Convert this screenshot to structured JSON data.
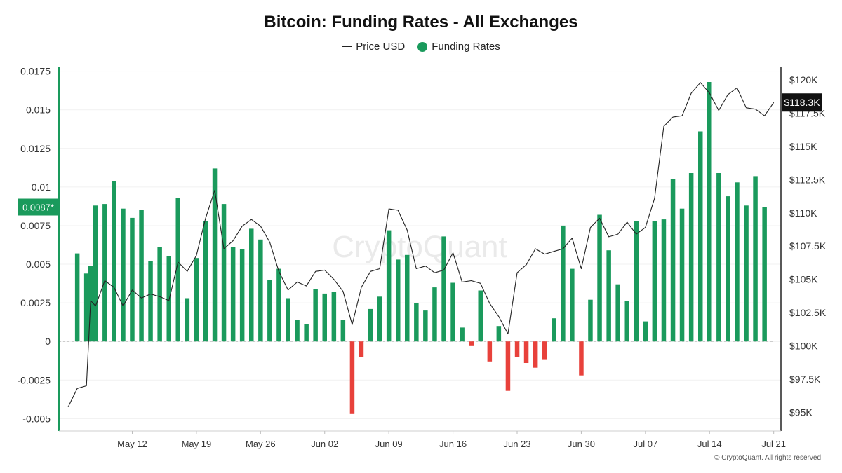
{
  "chart_data": {
    "type": "bar",
    "title": "Bitcoin: Funding Rates - All Exchanges",
    "legend": {
      "placement": "top-center",
      "items": [
        {
          "label": "Price USD",
          "marker": "line",
          "color": "#222222"
        },
        {
          "label": "Funding Rates",
          "marker": "dot",
          "color": "#1a9a5c"
        }
      ]
    },
    "colors": {
      "positive": "#1a9a5c",
      "negative": "#e8413b",
      "price_line": "#222222",
      "left_axis": "#1a9a5c",
      "right_axis": "#222222",
      "left_badge_bg": "#1a9a5c",
      "right_badge_bg": "#111111"
    },
    "watermark": "CryptoQuant",
    "copyright": "© CryptoQuant. All rights reserved",
    "left_axis": {
      "min": -0.0058,
      "max": 0.0178,
      "ticks": [
        {
          "value": 0.0175,
          "label": "0.0175"
        },
        {
          "value": 0.015,
          "label": "0.015"
        },
        {
          "value": 0.0125,
          "label": "0.0125"
        },
        {
          "value": 0.01,
          "label": "0.01"
        },
        {
          "value": 0.0075,
          "label": "0.0075"
        },
        {
          "value": 0.005,
          "label": "0.005"
        },
        {
          "value": 0.0025,
          "label": "0.0025"
        },
        {
          "value": 0,
          "label": "0"
        },
        {
          "value": -0.0025,
          "label": "-0.0025"
        },
        {
          "value": -0.005,
          "label": "-0.005"
        }
      ],
      "badge": {
        "value": 0.0087,
        "label": "0.0087*"
      }
    },
    "right_axis": {
      "min": 93600,
      "max": 121000,
      "ticks": [
        {
          "value": 120000,
          "label": "$120K"
        },
        {
          "value": 117500,
          "label": "$117.5K"
        },
        {
          "value": 115000,
          "label": "$115K"
        },
        {
          "value": 112500,
          "label": "$112.5K"
        },
        {
          "value": 110000,
          "label": "$110K"
        },
        {
          "value": 107500,
          "label": "$107.5K"
        },
        {
          "value": 105000,
          "label": "$105K"
        },
        {
          "value": 102500,
          "label": "$102.5K"
        },
        {
          "value": 100000,
          "label": "$100K"
        },
        {
          "value": 97500,
          "label": "$97.5K"
        },
        {
          "value": 95000,
          "label": "$95K"
        }
      ],
      "badge": {
        "value": 118300,
        "label": "$118.3K"
      }
    },
    "x_axis": {
      "labels": [
        {
          "date": "2025-05-12",
          "label": "May 12"
        },
        {
          "date": "2025-05-19",
          "label": "May 19"
        },
        {
          "date": "2025-05-26",
          "label": "May 26"
        },
        {
          "date": "2025-06-02",
          "label": "Jun 02"
        },
        {
          "date": "2025-06-09",
          "label": "Jun 09"
        },
        {
          "date": "2025-06-16",
          "label": "Jun 16"
        },
        {
          "date": "2025-06-23",
          "label": "Jun 23"
        },
        {
          "date": "2025-06-30",
          "label": "Jun 30"
        },
        {
          "date": "2025-07-07",
          "label": "Jul 07"
        },
        {
          "date": "2025-07-14",
          "label": "Jul 14"
        },
        {
          "date": "2025-07-21",
          "label": "Jul 21"
        }
      ]
    },
    "funding_rates": [
      {
        "x": "2025-05-06",
        "y": 0.0057
      },
      {
        "x": "2025-05-07",
        "y": 0.0044
      },
      {
        "x": "2025-05-07",
        "y": 0.0049
      },
      {
        "x": "2025-05-08",
        "y": 0.0088
      },
      {
        "x": "2025-05-09",
        "y": 0.0089
      },
      {
        "x": "2025-05-10",
        "y": 0.0104
      },
      {
        "x": "2025-05-11",
        "y": 0.0086
      },
      {
        "x": "2025-05-12",
        "y": 0.008
      },
      {
        "x": "2025-05-13",
        "y": 0.0085
      },
      {
        "x": "2025-05-14",
        "y": 0.0052
      },
      {
        "x": "2025-05-15",
        "y": 0.0061
      },
      {
        "x": "2025-05-16",
        "y": 0.0055
      },
      {
        "x": "2025-05-17",
        "y": 0.0093
      },
      {
        "x": "2025-05-18",
        "y": 0.0028
      },
      {
        "x": "2025-05-19",
        "y": 0.0054
      },
      {
        "x": "2025-05-20",
        "y": 0.0078
      },
      {
        "x": "2025-05-21",
        "y": 0.0112
      },
      {
        "x": "2025-05-22",
        "y": 0.0089
      },
      {
        "x": "2025-05-23",
        "y": 0.0061
      },
      {
        "x": "2025-05-24",
        "y": 0.006
      },
      {
        "x": "2025-05-25",
        "y": 0.0073
      },
      {
        "x": "2025-05-26",
        "y": 0.0066
      },
      {
        "x": "2025-05-27",
        "y": 0.004
      },
      {
        "x": "2025-05-28",
        "y": 0.0047
      },
      {
        "x": "2025-05-29",
        "y": 0.0028
      },
      {
        "x": "2025-05-30",
        "y": 0.0014
      },
      {
        "x": "2025-05-31",
        "y": 0.0011
      },
      {
        "x": "2025-06-01",
        "y": 0.0034
      },
      {
        "x": "2025-06-02",
        "y": 0.0031
      },
      {
        "x": "2025-06-03",
        "y": 0.0032
      },
      {
        "x": "2025-06-04",
        "y": 0.0014
      },
      {
        "x": "2025-06-05",
        "y": -0.0047
      },
      {
        "x": "2025-06-06",
        "y": -0.001
      },
      {
        "x": "2025-06-07",
        "y": 0.0021
      },
      {
        "x": "2025-06-08",
        "y": 0.0029
      },
      {
        "x": "2025-06-09",
        "y": 0.0072
      },
      {
        "x": "2025-06-10",
        "y": 0.0053
      },
      {
        "x": "2025-06-11",
        "y": 0.0056
      },
      {
        "x": "2025-06-12",
        "y": 0.0025
      },
      {
        "x": "2025-06-13",
        "y": 0.002
      },
      {
        "x": "2025-06-14",
        "y": 0.0035
      },
      {
        "x": "2025-06-15",
        "y": 0.0068
      },
      {
        "x": "2025-06-16",
        "y": 0.0038
      },
      {
        "x": "2025-06-17",
        "y": 0.0009
      },
      {
        "x": "2025-06-18",
        "y": -0.0003
      },
      {
        "x": "2025-06-19",
        "y": 0.0033
      },
      {
        "x": "2025-06-20",
        "y": -0.0013
      },
      {
        "x": "2025-06-21",
        "y": 0.001
      },
      {
        "x": "2025-06-22",
        "y": -0.0032
      },
      {
        "x": "2025-06-23",
        "y": -0.001
      },
      {
        "x": "2025-06-24",
        "y": -0.0014
      },
      {
        "x": "2025-06-25",
        "y": -0.0017
      },
      {
        "x": "2025-06-26",
        "y": -0.0012
      },
      {
        "x": "2025-06-27",
        "y": 0.0015
      },
      {
        "x": "2025-06-28",
        "y": 0.0075
      },
      {
        "x": "2025-06-29",
        "y": 0.0047
      },
      {
        "x": "2025-06-30",
        "y": -0.0022
      },
      {
        "x": "2025-07-01",
        "y": 0.0027
      },
      {
        "x": "2025-07-02",
        "y": 0.0082
      },
      {
        "x": "2025-07-03",
        "y": 0.0059
      },
      {
        "x": "2025-07-04",
        "y": 0.0037
      },
      {
        "x": "2025-07-05",
        "y": 0.0026
      },
      {
        "x": "2025-07-06",
        "y": 0.0078
      },
      {
        "x": "2025-07-07",
        "y": 0.0013
      },
      {
        "x": "2025-07-08",
        "y": 0.0078
      },
      {
        "x": "2025-07-09",
        "y": 0.0079
      },
      {
        "x": "2025-07-10",
        "y": 0.0105
      },
      {
        "x": "2025-07-11",
        "y": 0.0086
      },
      {
        "x": "2025-07-12",
        "y": 0.0109
      },
      {
        "x": "2025-07-13",
        "y": 0.0136
      },
      {
        "x": "2025-07-14",
        "y": 0.0168
      },
      {
        "x": "2025-07-15",
        "y": 0.0109
      },
      {
        "x": "2025-07-16",
        "y": 0.0094
      },
      {
        "x": "2025-07-17",
        "y": 0.0103
      },
      {
        "x": "2025-07-18",
        "y": 0.0088
      },
      {
        "x": "2025-07-19",
        "y": 0.0107
      },
      {
        "x": "2025-07-20",
        "y": 0.0087
      }
    ],
    "price_usd": [
      {
        "x": "2025-05-05",
        "y": 95400
      },
      {
        "x": "2025-05-06",
        "y": 96800
      },
      {
        "x": "2025-05-07",
        "y": 97000
      },
      {
        "x": "2025-05-07",
        "y": 103400
      },
      {
        "x": "2025-05-08",
        "y": 103000
      },
      {
        "x": "2025-05-09",
        "y": 104900
      },
      {
        "x": "2025-05-10",
        "y": 104400
      },
      {
        "x": "2025-05-11",
        "y": 103000
      },
      {
        "x": "2025-05-12",
        "y": 104200
      },
      {
        "x": "2025-05-13",
        "y": 103600
      },
      {
        "x": "2025-05-14",
        "y": 103900
      },
      {
        "x": "2025-05-15",
        "y": 103700
      },
      {
        "x": "2025-05-16",
        "y": 103400
      },
      {
        "x": "2025-05-17",
        "y": 106300
      },
      {
        "x": "2025-05-18",
        "y": 105600
      },
      {
        "x": "2025-05-19",
        "y": 106800
      },
      {
        "x": "2025-05-20",
        "y": 109600
      },
      {
        "x": "2025-05-21",
        "y": 111700
      },
      {
        "x": "2025-05-22",
        "y": 107300
      },
      {
        "x": "2025-05-23",
        "y": 107900
      },
      {
        "x": "2025-05-24",
        "y": 109000
      },
      {
        "x": "2025-05-25",
        "y": 109500
      },
      {
        "x": "2025-05-26",
        "y": 109000
      },
      {
        "x": "2025-05-27",
        "y": 107800
      },
      {
        "x": "2025-05-28",
        "y": 105600
      },
      {
        "x": "2025-05-29",
        "y": 104200
      },
      {
        "x": "2025-05-30",
        "y": 104800
      },
      {
        "x": "2025-05-31",
        "y": 104500
      },
      {
        "x": "2025-06-01",
        "y": 105600
      },
      {
        "x": "2025-06-02",
        "y": 105700
      },
      {
        "x": "2025-06-03",
        "y": 105000
      },
      {
        "x": "2025-06-04",
        "y": 104100
      },
      {
        "x": "2025-06-05",
        "y": 101600
      },
      {
        "x": "2025-06-06",
        "y": 104400
      },
      {
        "x": "2025-06-07",
        "y": 105600
      },
      {
        "x": "2025-06-08",
        "y": 105800
      },
      {
        "x": "2025-06-09",
        "y": 110300
      },
      {
        "x": "2025-06-10",
        "y": 110200
      },
      {
        "x": "2025-06-11",
        "y": 108700
      },
      {
        "x": "2025-06-12",
        "y": 105800
      },
      {
        "x": "2025-06-13",
        "y": 106000
      },
      {
        "x": "2025-06-14",
        "y": 105500
      },
      {
        "x": "2025-06-15",
        "y": 105700
      },
      {
        "x": "2025-06-16",
        "y": 107000
      },
      {
        "x": "2025-06-17",
        "y": 104800
      },
      {
        "x": "2025-06-18",
        "y": 104900
      },
      {
        "x": "2025-06-19",
        "y": 104700
      },
      {
        "x": "2025-06-20",
        "y": 103200
      },
      {
        "x": "2025-06-21",
        "y": 102200
      },
      {
        "x": "2025-06-22",
        "y": 100900
      },
      {
        "x": "2025-06-23",
        "y": 105500
      },
      {
        "x": "2025-06-24",
        "y": 106100
      },
      {
        "x": "2025-06-25",
        "y": 107300
      },
      {
        "x": "2025-06-26",
        "y": 106900
      },
      {
        "x": "2025-06-27",
        "y": 107100
      },
      {
        "x": "2025-06-28",
        "y": 107300
      },
      {
        "x": "2025-06-29",
        "y": 108100
      },
      {
        "x": "2025-06-30",
        "y": 105800
      },
      {
        "x": "2025-07-01",
        "y": 108900
      },
      {
        "x": "2025-07-02",
        "y": 109600
      },
      {
        "x": "2025-07-03",
        "y": 108200
      },
      {
        "x": "2025-07-04",
        "y": 108400
      },
      {
        "x": "2025-07-05",
        "y": 109300
      },
      {
        "x": "2025-07-06",
        "y": 108400
      },
      {
        "x": "2025-07-07",
        "y": 108900
      },
      {
        "x": "2025-07-08",
        "y": 111100
      },
      {
        "x": "2025-07-09",
        "y": 116500
      },
      {
        "x": "2025-07-10",
        "y": 117200
      },
      {
        "x": "2025-07-11",
        "y": 117300
      },
      {
        "x": "2025-07-12",
        "y": 119000
      },
      {
        "x": "2025-07-13",
        "y": 119800
      },
      {
        "x": "2025-07-14",
        "y": 119000
      },
      {
        "x": "2025-07-15",
        "y": 117700
      },
      {
        "x": "2025-07-16",
        "y": 118900
      },
      {
        "x": "2025-07-17",
        "y": 119400
      },
      {
        "x": "2025-07-18",
        "y": 117900
      },
      {
        "x": "2025-07-19",
        "y": 117800
      },
      {
        "x": "2025-07-20",
        "y": 117300
      },
      {
        "x": "2025-07-21",
        "y": 118300
      }
    ]
  }
}
